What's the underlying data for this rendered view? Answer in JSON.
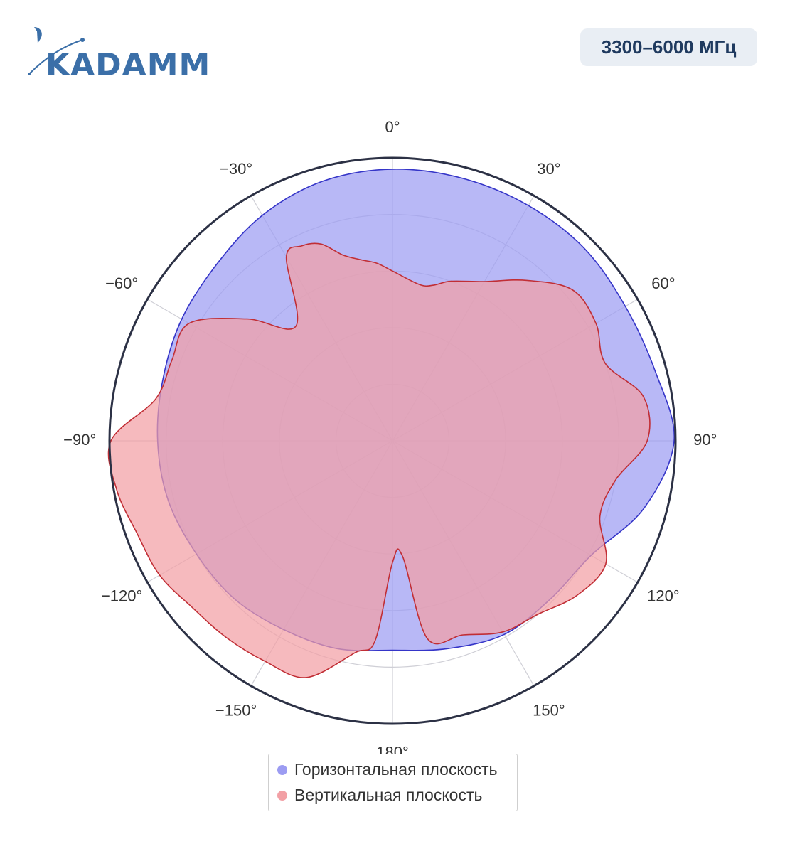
{
  "brand": {
    "logo_text": "KADAMM",
    "logo_color": "#3b6fa8"
  },
  "badge": {
    "text": "3300–6000 МГц"
  },
  "chart_data": {
    "type": "polar-area",
    "angular_direction": "clockwise",
    "angular_zero": "top",
    "angular_ticks": [
      {
        "angle": 0,
        "label": "0°"
      },
      {
        "angle": 30,
        "label": "30°"
      },
      {
        "angle": 60,
        "label": "60°"
      },
      {
        "angle": 90,
        "label": "90°"
      },
      {
        "angle": 120,
        "label": "120°"
      },
      {
        "angle": 150,
        "label": "150°"
      },
      {
        "angle": 180,
        "label": "180°"
      },
      {
        "angle": -150,
        "label": "−150°"
      },
      {
        "angle": -120,
        "label": "−120°"
      },
      {
        "angle": -90,
        "label": "−90°"
      },
      {
        "angle": -60,
        "label": "−60°"
      },
      {
        "angle": -30,
        "label": "−30°"
      }
    ],
    "radial_range": [
      0,
      1
    ],
    "radial_gridlines": [
      0.2,
      0.4,
      0.6,
      0.8
    ],
    "grid": true,
    "legend_position": "bottom-center",
    "series": [
      {
        "name": "Горизонтальная плоскость",
        "fill_color": "#9c9cf2",
        "line_color": "#3535c8",
        "theta": [
          0,
          15,
          30,
          45,
          60,
          75,
          90,
          105,
          120,
          135,
          150,
          165,
          180,
          195,
          210,
          225,
          240,
          255,
          270,
          285,
          300,
          315,
          330,
          345,
          360
        ],
        "r": [
          0.96,
          0.96,
          0.96,
          0.96,
          0.95,
          0.96,
          0.995,
          0.92,
          0.81,
          0.79,
          0.79,
          0.76,
          0.74,
          0.76,
          0.77,
          0.79,
          0.8,
          0.82,
          0.83,
          0.84,
          0.86,
          0.88,
          0.92,
          0.95,
          0.96
        ]
      },
      {
        "name": "Вертикальная плоскость",
        "fill_color": "#f2a0a5",
        "line_color": "#c12e35",
        "theta": [
          0,
          10,
          15,
          20,
          30,
          40,
          50,
          60,
          70,
          80,
          90,
          100,
          110,
          120,
          130,
          140,
          150,
          160,
          170,
          175,
          180,
          185,
          190,
          200,
          210,
          220,
          230,
          240,
          250,
          260,
          270,
          280,
          290,
          300,
          310,
          320,
          330,
          335,
          340,
          345,
          350,
          355,
          360
        ],
        "r": [
          0.6,
          0.56,
          0.57,
          0.6,
          0.65,
          0.74,
          0.83,
          0.83,
          0.8,
          0.9,
          0.9,
          0.8,
          0.78,
          0.87,
          0.85,
          0.8,
          0.78,
          0.73,
          0.71,
          0.41,
          0.43,
          0.71,
          0.76,
          0.89,
          0.9,
          0.91,
          0.92,
          0.95,
          0.96,
          0.99,
          0.995,
          0.85,
          0.83,
          0.83,
          0.67,
          0.53,
          0.75,
          0.76,
          0.74,
          0.68,
          0.65,
          0.63,
          0.6
        ]
      }
    ]
  },
  "legend": {
    "items": [
      {
        "label": "Горизонтальная плоскость",
        "color": "#9c9cf2"
      },
      {
        "label": "Вертикальная плоскость",
        "color": "#f2a0a5"
      }
    ]
  }
}
